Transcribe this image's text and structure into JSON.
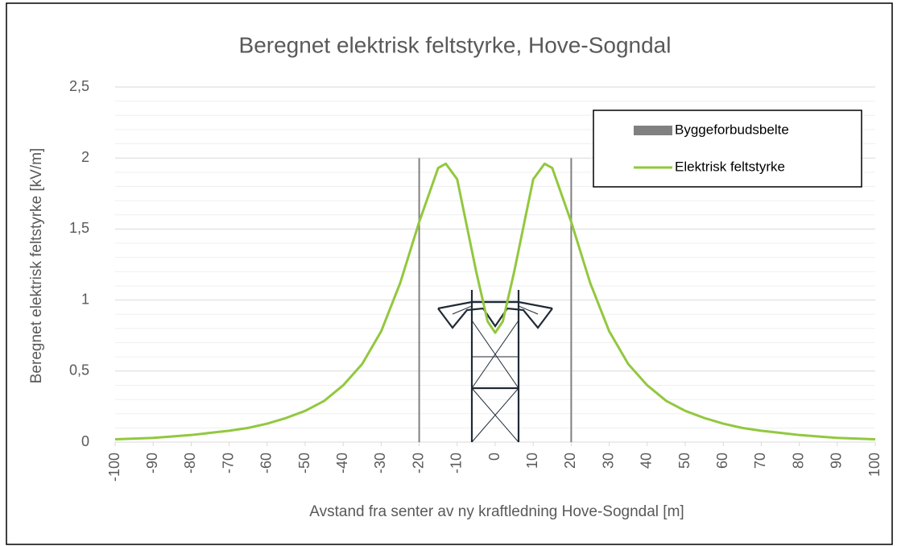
{
  "chart_data": {
    "type": "line",
    "title": "Beregnet elektrisk feltstyrke, Hove-Sogndal",
    "x_label": "Avstand fra senter av ny kraftledning Hove-Sogndal [m]",
    "y_label": "Beregnet elektrisk feltstyrke [kV/m]",
    "xlim": [
      -100,
      100
    ],
    "xticks": [
      -100,
      -90,
      -80,
      -70,
      -60,
      -50,
      -40,
      -30,
      -20,
      -10,
      0,
      10,
      20,
      30,
      40,
      50,
      60,
      70,
      80,
      90,
      100
    ],
    "ylim": [
      0,
      2.5
    ],
    "yticks": [
      0,
      {
        "value": 0.5,
        "label": "0,5"
      },
      1,
      {
        "value": 1.5,
        "label": "1,5"
      },
      2,
      {
        "value": 2.5,
        "label": "2,5"
      }
    ],
    "yminor": [
      0.1,
      0.2,
      0.3,
      0.4,
      0.6,
      0.7,
      0.8,
      0.9,
      1.1,
      1.2,
      1.3,
      1.4,
      1.6,
      1.7,
      1.8,
      1.9,
      2.1,
      2.2,
      2.3,
      2.4
    ],
    "grid": true,
    "legend": "upper right",
    "series": [
      {
        "name": "Byggeforbudsbelte",
        "type": "vline",
        "color": "#808080",
        "x": [
          -20,
          20
        ],
        "values": [
          2,
          2
        ]
      },
      {
        "name": "Elektrisk feltstyrke",
        "color": "#92c83e",
        "x": [
          -100,
          -95,
          -90,
          -85,
          -80,
          -75,
          -70,
          -65,
          -60,
          -55,
          -50,
          -45,
          -40,
          -35,
          -30,
          -25,
          -20,
          -15,
          -13,
          -10,
          -5,
          -2,
          0,
          2,
          5,
          10,
          13,
          15,
          20,
          25,
          30,
          35,
          40,
          45,
          50,
          55,
          60,
          65,
          70,
          75,
          80,
          85,
          90,
          95,
          100
        ],
        "values": [
          0.02,
          0.025,
          0.03,
          0.04,
          0.05,
          0.065,
          0.08,
          0.1,
          0.13,
          0.17,
          0.22,
          0.29,
          0.4,
          0.55,
          0.78,
          1.12,
          1.55,
          1.93,
          1.96,
          1.85,
          1.2,
          0.85,
          0.77,
          0.85,
          1.2,
          1.85,
          1.96,
          1.93,
          1.55,
          1.12,
          0.78,
          0.55,
          0.4,
          0.29,
          0.22,
          0.17,
          0.13,
          0.1,
          0.08,
          0.065,
          0.05,
          0.04,
          0.03,
          0.025,
          0.02
        ]
      }
    ]
  }
}
